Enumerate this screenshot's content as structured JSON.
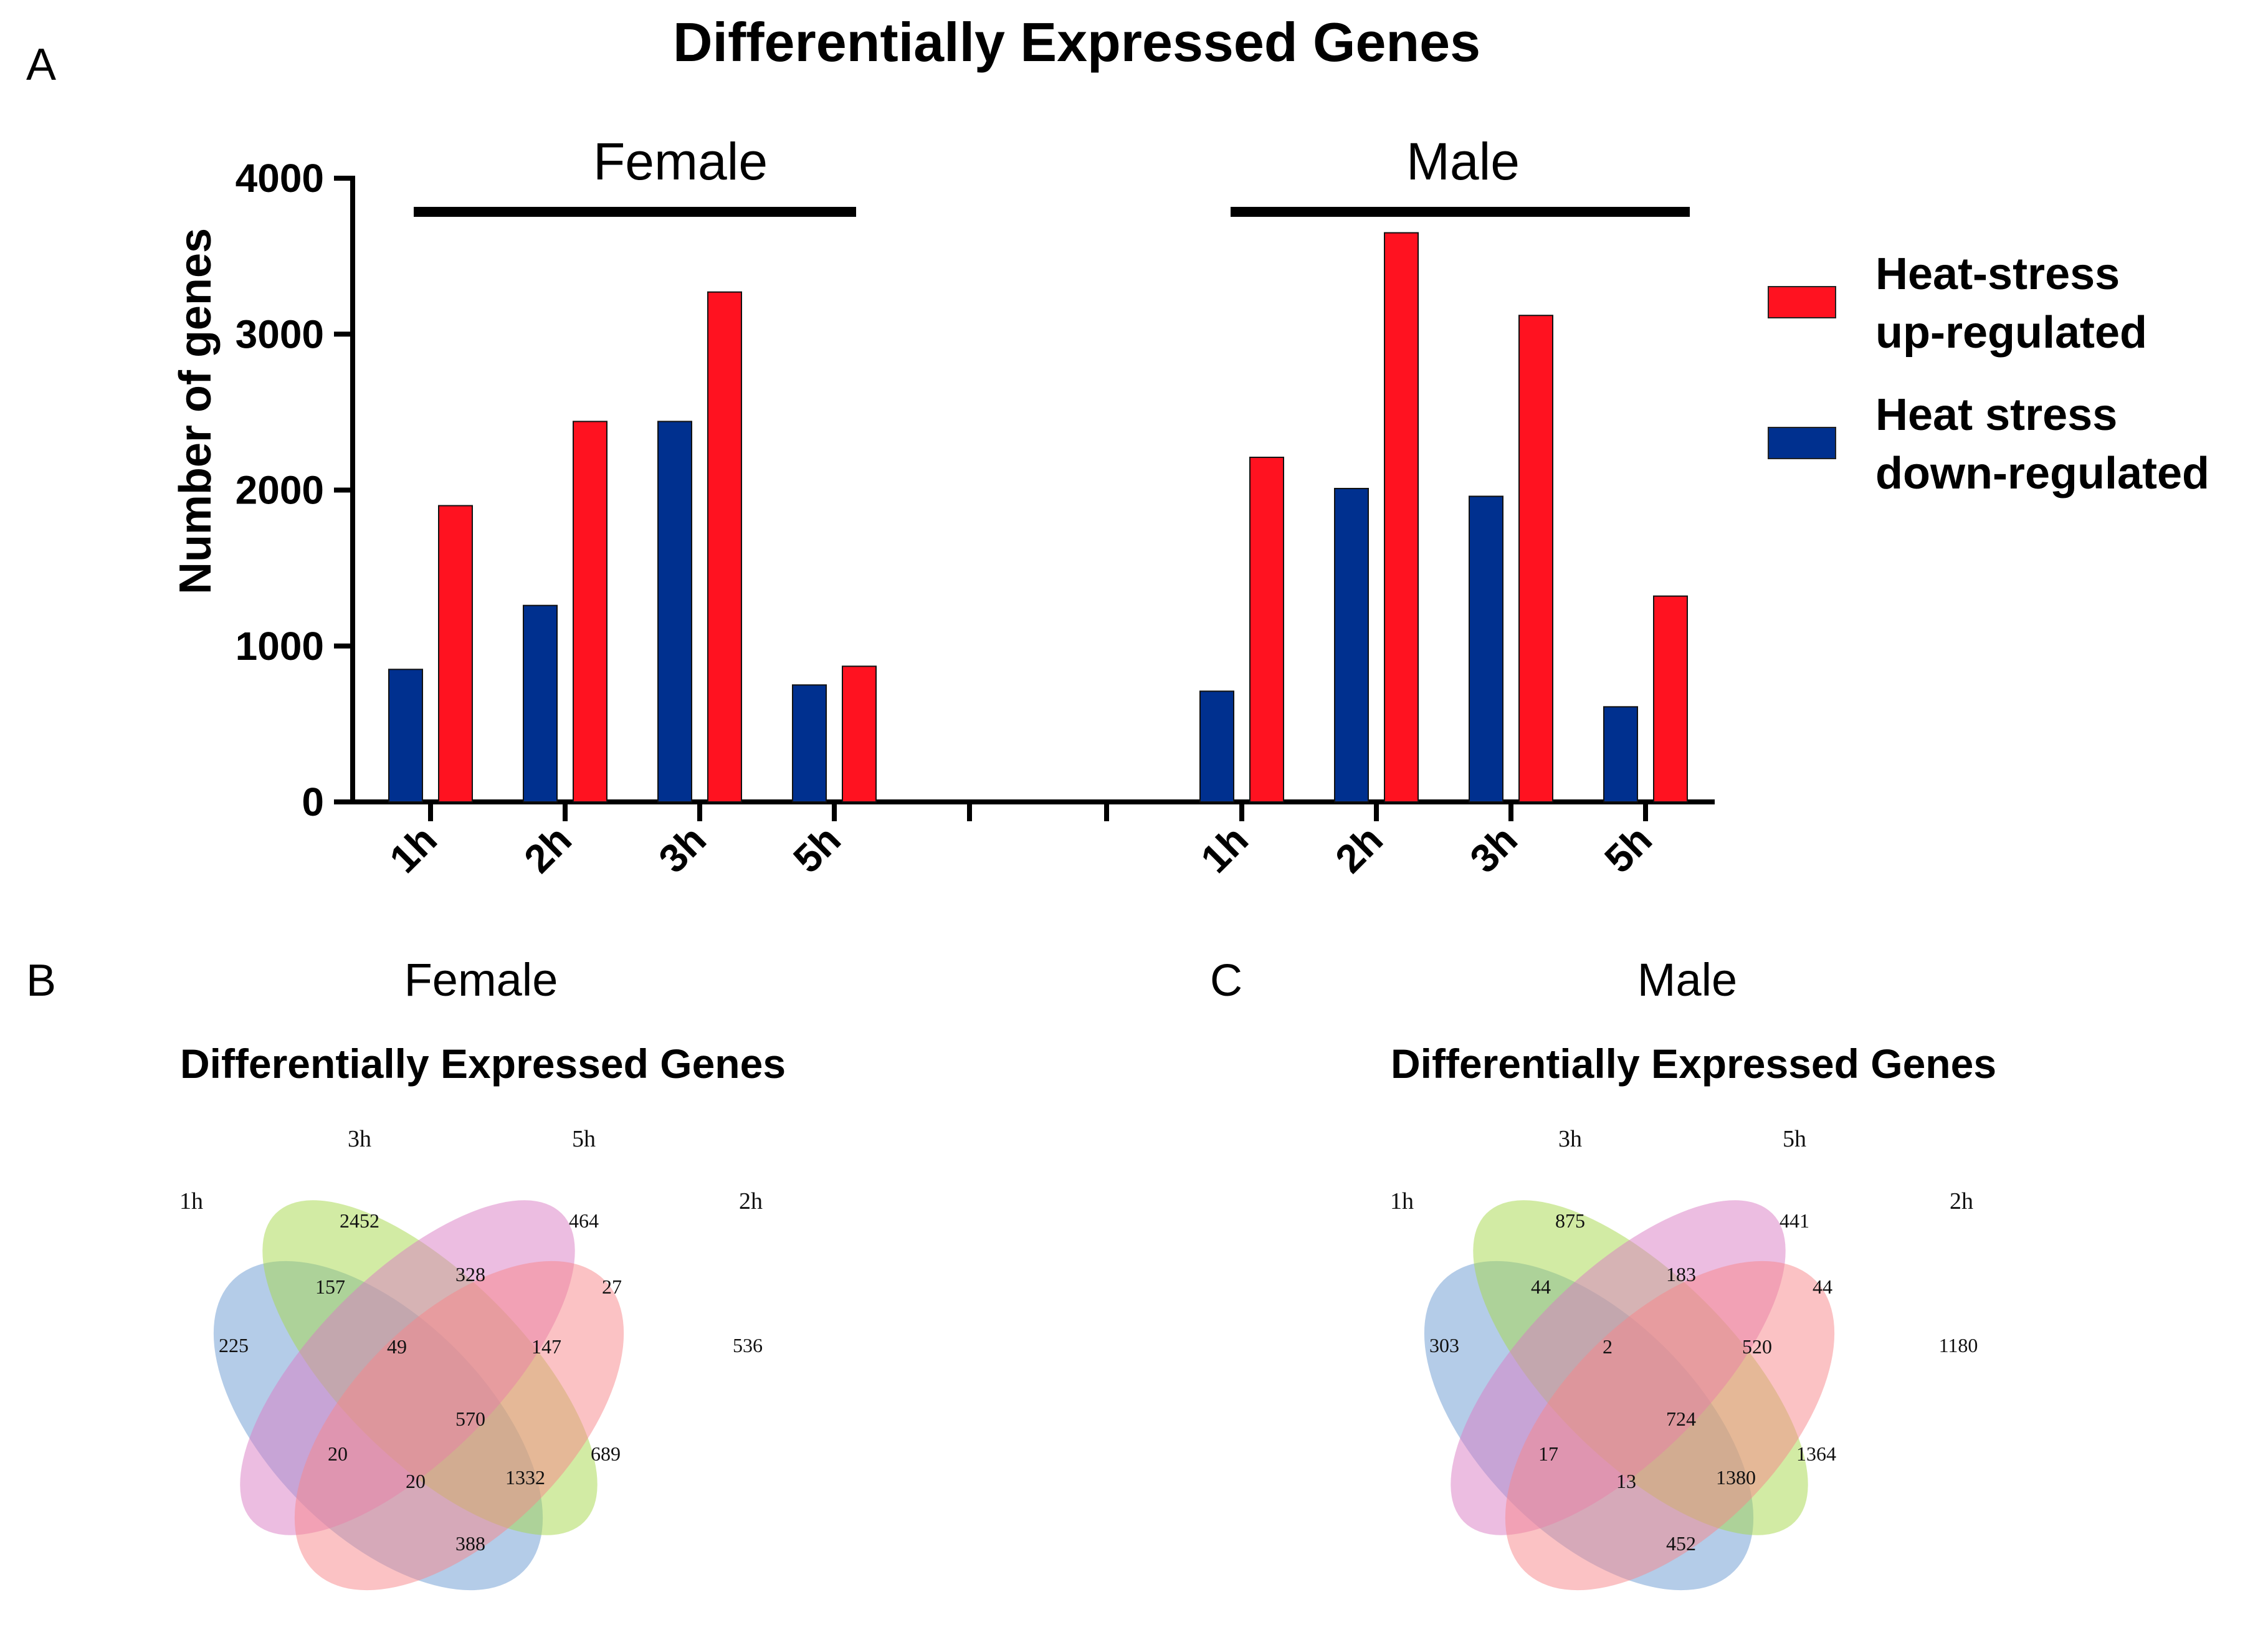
{
  "panels": {
    "a_letter": "A",
    "b_letter": "B",
    "c_letter": "C"
  },
  "chart_data": [
    {
      "type": "bar",
      "title": "Differentially Expressed Genes",
      "xlabel": "",
      "ylabel": "Number of genes",
      "ylim": [
        0,
        4000
      ],
      "yticks": [
        "0",
        "1000",
        "2000",
        "3000",
        "4000"
      ],
      "ytick_values": [
        0,
        1000,
        2000,
        3000,
        4000
      ],
      "groups": [
        {
          "name": "Female",
          "categories": [
            "1h",
            "2h",
            "3h",
            "5h"
          ]
        },
        {
          "name": "Male",
          "categories": [
            "1h",
            "2h",
            "3h",
            "5h"
          ]
        }
      ],
      "series": [
        {
          "name": "Heat stress down-regulated",
          "legend_lines": [
            "Heat stress",
            "down-regulated"
          ],
          "color": "#00308f",
          "values": [
            850,
            1260,
            2440,
            750,
            710,
            2010,
            1960,
            610
          ]
        },
        {
          "name": "Heat-stress up-regulated",
          "legend_lines": [
            "Heat-stress",
            "up-regulated"
          ],
          "color": "#ff1220",
          "values": [
            1900,
            2440,
            3270,
            870,
            2210,
            3650,
            3120,
            1320
          ]
        }
      ],
      "legend": "right"
    },
    {
      "type": "venn",
      "panel_label": "Female",
      "title": "Differentially Expressed Genes",
      "sets": [
        "1h",
        "3h",
        "5h",
        "2h"
      ],
      "set_colors": [
        "#6a9ad2",
        "#a6d84a",
        "#d97cc4",
        "#f8858a"
      ],
      "regions": [
        "225",
        "2452",
        "464",
        "536",
        "157",
        "328",
        "27",
        "49",
        "147",
        "570",
        "20",
        "20",
        "1332",
        "689",
        "388"
      ]
    },
    {
      "type": "venn",
      "panel_label": "Male",
      "title": "Differentially Expressed Genes",
      "sets": [
        "1h",
        "3h",
        "5h",
        "2h"
      ],
      "set_colors": [
        "#6a9ad2",
        "#a6d84a",
        "#d97cc4",
        "#f8858a"
      ],
      "regions": [
        "303",
        "875",
        "441",
        "1180",
        "44",
        "183",
        "44",
        "2",
        "520",
        "724",
        "17",
        "13",
        "1380",
        "1364",
        "452"
      ]
    }
  ]
}
